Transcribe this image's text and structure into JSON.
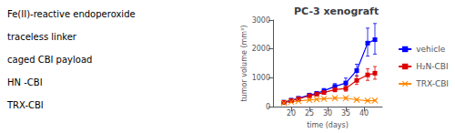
{
  "chart_data": {
    "type": "line",
    "title": "PC-3 xenograft",
    "xlabel": "time (days)",
    "ylabel": "tumor volume (mm³)",
    "x": [
      18,
      20,
      22,
      25,
      27,
      29,
      32,
      35,
      38,
      41,
      43
    ],
    "series": [
      {
        "name": "vehicle",
        "color": "#0000ff",
        "marker": "square",
        "values": [
          155,
          225,
          290,
          400,
          460,
          550,
          700,
          820,
          1250,
          2200,
          2320
        ],
        "yerr_lo": [
          20,
          30,
          40,
          50,
          55,
          65,
          85,
          130,
          190,
          450,
          500
        ],
        "yerr_hi": [
          20,
          30,
          40,
          55,
          65,
          80,
          100,
          170,
          220,
          520,
          560
        ]
      },
      {
        "name": "H₂N-CBI",
        "color": "#dd0000",
        "marker": "square",
        "values": [
          145,
          205,
          270,
          375,
          435,
          490,
          590,
          630,
          910,
          1100,
          1160
        ],
        "yerr_lo": [
          18,
          22,
          32,
          42,
          50,
          60,
          75,
          95,
          140,
          190,
          210
        ],
        "yerr_hi": [
          20,
          25,
          38,
          48,
          60,
          70,
          85,
          110,
          160,
          210,
          230
        ]
      },
      {
        "name": "TRX-CBI",
        "color": "#ff8800",
        "marker": "x",
        "values": [
          130,
          165,
          195,
          235,
          255,
          275,
          295,
          295,
          240,
          205,
          215
        ],
        "yerr_lo": [
          12,
          18,
          22,
          28,
          28,
          28,
          32,
          32,
          28,
          22,
          22
        ],
        "yerr_hi": [
          15,
          20,
          25,
          30,
          30,
          30,
          35,
          35,
          30,
          25,
          25
        ]
      }
    ],
    "xlim": [
      15,
      45
    ],
    "ylim": [
      0,
      3000
    ],
    "xticks": [
      20,
      25,
      30,
      35,
      40
    ],
    "yticks": [
      0,
      1000,
      2000,
      3000
    ],
    "grid": false,
    "legend": "right",
    "annotations": [
      "Fe(II)-reactive endoperoxide",
      "traceless linker",
      "caged CBI payload",
      "HN -CBI",
      "TRX-CBI"
    ]
  }
}
